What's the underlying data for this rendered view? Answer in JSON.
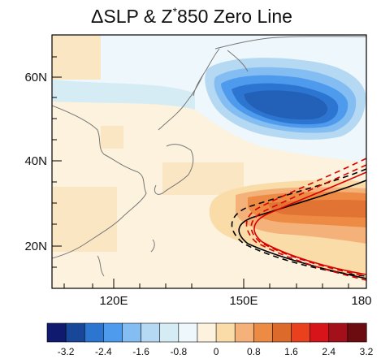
{
  "figure": {
    "title_part1": "ΔSLP & Z",
    "title_star": "*",
    "title_part2": "850 Zero Line"
  },
  "map": {
    "type": "gridded-anomaly-map",
    "lon_range": [
      100,
      180
    ],
    "lat_range": [
      10,
      70
    ],
    "x_ticks": [
      "120E",
      "150E",
      "180"
    ],
    "y_ticks": [
      "60N",
      "40N",
      "20N"
    ],
    "grid": false
  },
  "colorbar": {
    "labels": [
      "-3.2",
      "-2.4",
      "-1.6",
      "-0.8",
      "0",
      "0.8",
      "1.6",
      "2.4",
      "3.2"
    ],
    "colors": [
      "#101a6e",
      "#18479a",
      "#2c76d2",
      "#4e9bee",
      "#83bdf2",
      "#b5d9f3",
      "#d6ecf5",
      "#eef7fb",
      "#fdf2dd",
      "#f9dca8",
      "#f4b27a",
      "#ed8b44",
      "#dc6b2b",
      "#ea401e",
      "#d6141a",
      "#a4101a",
      "#6c0b10"
    ]
  },
  "legend_notes": {
    "contours": "solid red/black and dashed red/black zero lines of Z*850"
  }
}
